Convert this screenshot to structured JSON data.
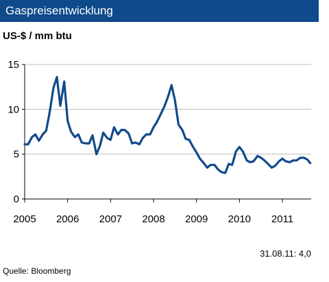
{
  "header": {
    "title": "Gaspreisentwicklung",
    "bar_color": "#0f4a8a"
  },
  "unit_label": "US-$ / mm btu",
  "footer": {
    "last_value": "31.08.11: 4,0",
    "source": "Quelle: Bloomberg"
  },
  "chart_data": {
    "type": "line",
    "title": "Gaspreisentwicklung",
    "ylabel": "US-$ / mm btu",
    "xlabel": "",
    "xlim": [
      2005.0,
      2011.67
    ],
    "ylim": [
      0,
      15
    ],
    "x_ticks": [
      2005,
      2006,
      2007,
      2008,
      2009,
      2010,
      2011
    ],
    "y_ticks": [
      0,
      5,
      10,
      15
    ],
    "grid": "horizontal",
    "line_color": "#0f4a8a",
    "series": [
      {
        "x": [
          2005.0,
          2005.08,
          2005.17,
          2005.25,
          2005.33,
          2005.42,
          2005.5,
          2005.58,
          2005.67,
          2005.75,
          2005.83,
          2005.92,
          2006.0,
          2006.08,
          2006.17,
          2006.25,
          2006.33,
          2006.42,
          2006.5,
          2006.58,
          2006.67,
          2006.75,
          2006.83,
          2006.92,
          2007.0,
          2007.08,
          2007.17,
          2007.25,
          2007.33,
          2007.42,
          2007.5,
          2007.58,
          2007.67,
          2007.75,
          2007.83,
          2007.92,
          2008.0,
          2008.08,
          2008.17,
          2008.25,
          2008.33,
          2008.42,
          2008.5,
          2008.58,
          2008.67,
          2008.75,
          2008.83,
          2008.92,
          2009.0,
          2009.08,
          2009.17,
          2009.25,
          2009.33,
          2009.42,
          2009.5,
          2009.58,
          2009.67,
          2009.75,
          2009.83,
          2009.92,
          2010.0,
          2010.08,
          2010.17,
          2010.25,
          2010.33,
          2010.42,
          2010.5,
          2010.58,
          2010.67,
          2010.75,
          2010.83,
          2010.92,
          2011.0,
          2011.08,
          2011.17,
          2011.25,
          2011.33,
          2011.42,
          2011.5,
          2011.58,
          2011.65
        ],
        "values": [
          6.1,
          6.1,
          6.9,
          7.2,
          6.5,
          7.2,
          7.6,
          9.6,
          12.4,
          13.6,
          10.4,
          13.1,
          8.7,
          7.5,
          6.9,
          7.2,
          6.3,
          6.2,
          6.2,
          7.1,
          5.0,
          5.9,
          7.4,
          6.8,
          6.6,
          8.0,
          7.2,
          7.7,
          7.7,
          7.3,
          6.2,
          6.3,
          6.1,
          6.8,
          7.2,
          7.2,
          8.0,
          8.6,
          9.5,
          10.3,
          11.3,
          12.7,
          11.0,
          8.3,
          7.7,
          6.7,
          6.6,
          5.8,
          5.2,
          4.5,
          4.0,
          3.5,
          3.8,
          3.8,
          3.3,
          3.0,
          2.9,
          3.9,
          3.8,
          5.3,
          5.8,
          5.3,
          4.3,
          4.1,
          4.2,
          4.8,
          4.6,
          4.3,
          3.9,
          3.5,
          3.7,
          4.2,
          4.5,
          4.2,
          4.1,
          4.3,
          4.3,
          4.6,
          4.6,
          4.4,
          4.0
        ]
      }
    ]
  }
}
